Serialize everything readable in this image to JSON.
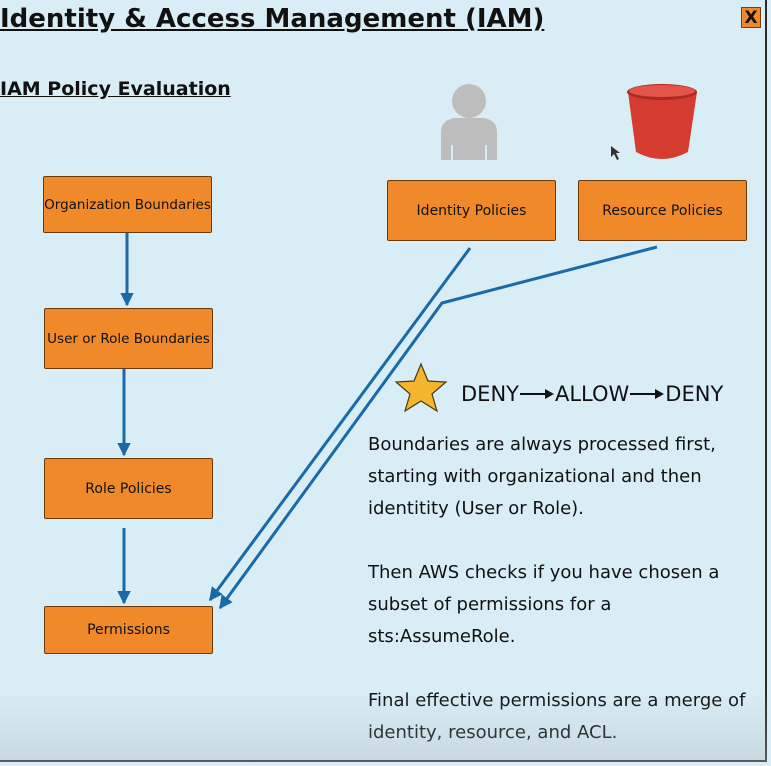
{
  "header": {
    "title": "Identity & Access Management (IAM)",
    "close_label": "X"
  },
  "section": {
    "subtitle": "IAM Policy Evaluation"
  },
  "diagram": {
    "boxes": {
      "organization": "Organization Boundaries",
      "user_or_role": "User or Role Boundaries",
      "role_policies": "Role Policies",
      "permissions": "Permissions",
      "identity_policies": "Identity Policies",
      "resource_policies": "Resource Policies"
    },
    "icons": [
      "user-icon",
      "bucket-icon",
      "star-icon"
    ],
    "flow": {
      "step1": "DENY",
      "step2": "ALLOW",
      "step3": "DENY"
    }
  },
  "notes": {
    "p1_lines": [
      "Boundaries are always processed first,",
      "starting with organizational and then",
      "identitity (User or Role)."
    ],
    "p2_lines": [
      "Then AWS checks if you have chosen a",
      "subset of permissions for a",
      "sts:AssumeRole."
    ],
    "p3_lines": [
      "Final effective permissions are a merge of",
      "identity, resource, and ACL."
    ]
  },
  "colors": {
    "box": "#f0892a",
    "arrow": "#1a6aa8",
    "background": "#d9edf7",
    "bucket": "#d63b30",
    "star": "#f5b52e"
  }
}
